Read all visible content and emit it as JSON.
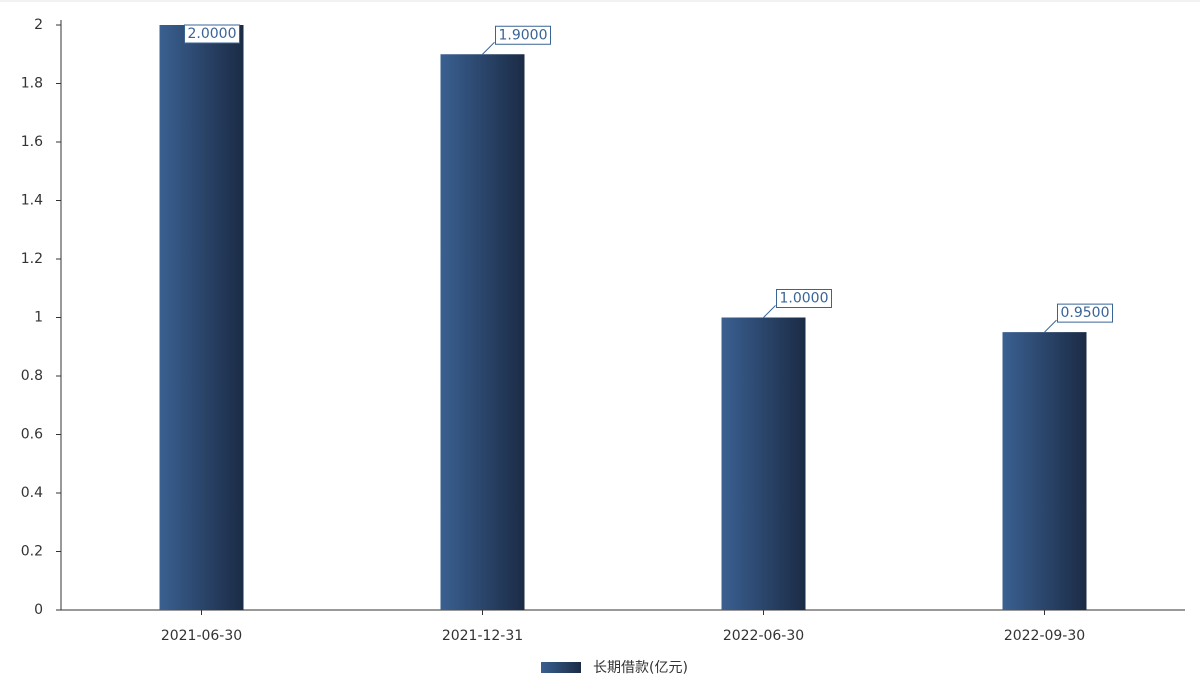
{
  "chart_data": {
    "type": "bar",
    "categories": [
      "2021-06-30",
      "2021-12-31",
      "2022-06-30",
      "2022-09-30"
    ],
    "series": [
      {
        "name": "长期借款(亿元)",
        "color": "#2b4a72",
        "values": [
          2,
          1.9,
          1,
          0.95
        ],
        "value_labels": [
          "2.0000",
          "1.9000",
          "1.0000",
          "0.9500"
        ]
      }
    ],
    "ylim": [
      0,
      2
    ],
    "yticks": [
      0,
      0.2,
      0.4,
      0.6,
      0.8,
      1,
      1.2,
      1.4,
      1.6,
      1.8,
      2
    ],
    "grid": false,
    "legend": "bottom"
  }
}
